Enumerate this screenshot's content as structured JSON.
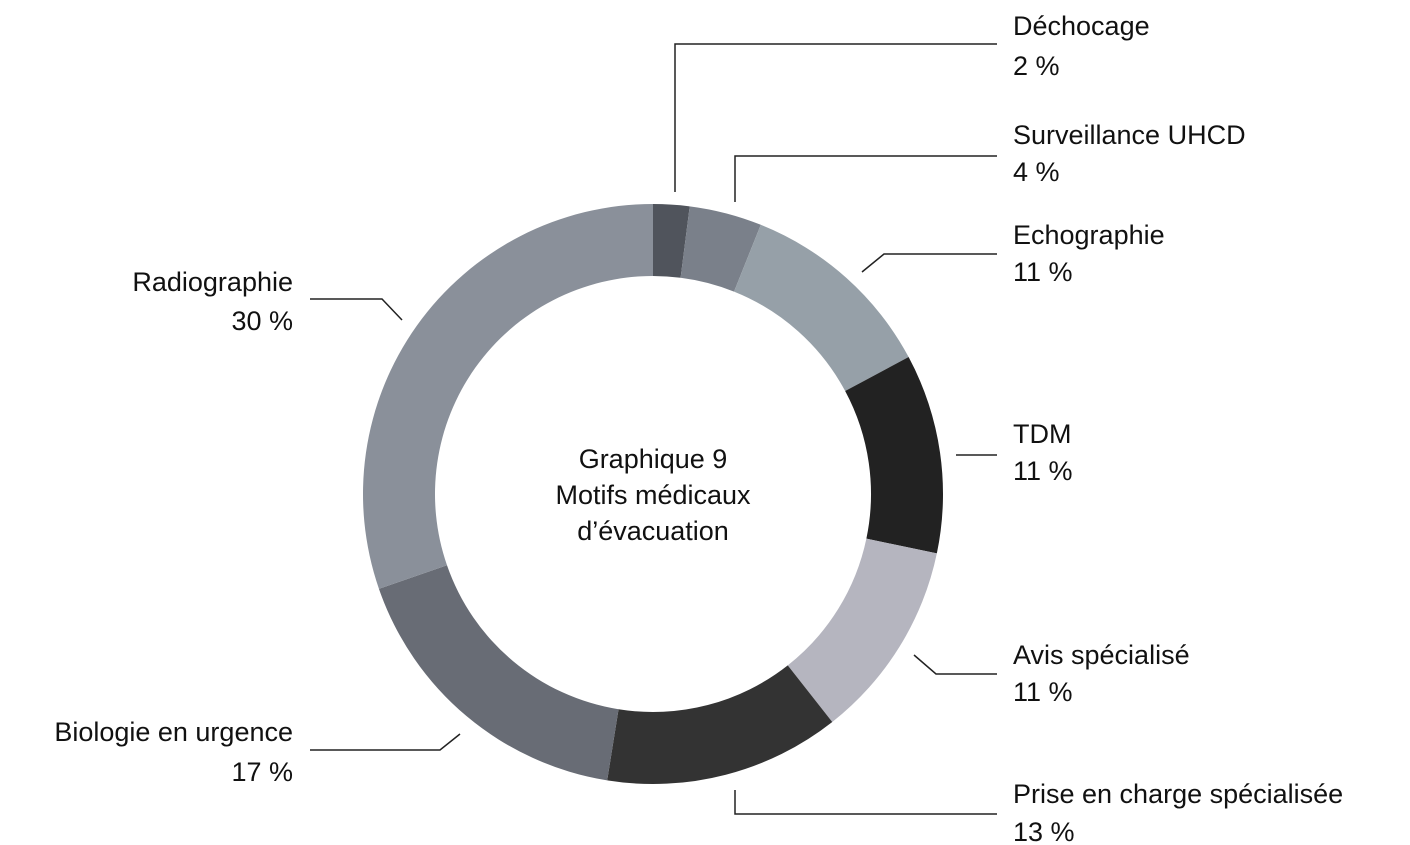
{
  "chart_data": {
    "type": "donut",
    "title": [
      "Graphique 9",
      "Motifs médicaux",
      "d’évacuation"
    ],
    "categories": [
      "Déchocage",
      "Surveillance UHCD",
      "Echographie",
      "TDM",
      "Avis spécialisé",
      "Prise en charge spécialisée",
      "Biologie en urgence",
      "Radiographie"
    ],
    "values": [
      2,
      4,
      11,
      11,
      11,
      13,
      17,
      30
    ],
    "value_labels": [
      "2 %",
      "4 %",
      "11 %",
      "11 %",
      "11 %",
      "13 %",
      "17 %",
      "30 %"
    ],
    "colors": [
      "#50545c",
      "#7a808a",
      "#96a0a8",
      "#222222",
      "#b5b5bf",
      "#333333",
      "#686c75",
      "#8a909a"
    ]
  }
}
